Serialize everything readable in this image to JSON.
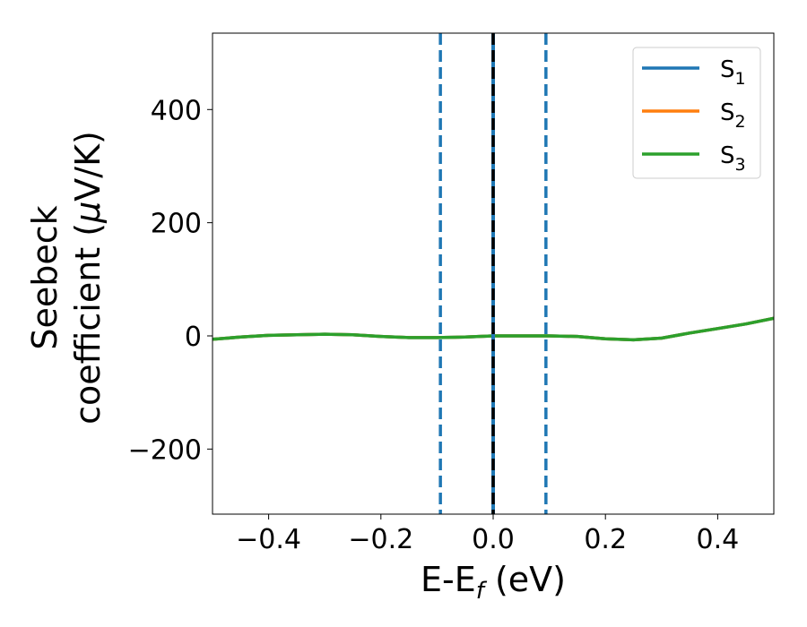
{
  "chart_data": {
    "type": "line",
    "xlabel": {
      "main": "E-E",
      "sub": "f",
      "unit": " (eV)"
    },
    "ylabel": {
      "line1": "Seebeck",
      "line2": "coefficient  (",
      "mu": "μ",
      "unit": "V/K)"
    },
    "xlim": [
      -0.5,
      0.5
    ],
    "ylim": [
      -315,
      535
    ],
    "x_ticks": [
      -0.4,
      -0.2,
      0.0,
      0.2,
      0.4
    ],
    "x_tick_labels": [
      "−0.4",
      "−0.2",
      "0.0",
      "0.2",
      "0.4"
    ],
    "y_ticks": [
      -200,
      0,
      200,
      400
    ],
    "y_tick_labels": [
      "−200",
      "0",
      "200",
      "400"
    ],
    "grid": false,
    "legend_position": "top-right",
    "series": [
      {
        "name": "S",
        "sub": "1",
        "color": "#1f77b4",
        "x": [
          -0.5,
          -0.45,
          -0.4,
          -0.35,
          -0.3,
          -0.25,
          -0.2,
          -0.15,
          -0.1,
          -0.05,
          0.0,
          0.05,
          0.1,
          0.15,
          0.2,
          0.25,
          0.3,
          0.35,
          0.4,
          0.45,
          0.5
        ],
        "y": [
          -6,
          -2,
          1,
          2,
          3,
          2,
          -1,
          -3,
          -3,
          -2,
          0,
          0,
          0,
          -1,
          -5,
          -7,
          -4,
          5,
          13,
          21,
          31
        ]
      },
      {
        "name": "S",
        "sub": "2",
        "color": "#ff7f0e",
        "x": [
          -0.5,
          -0.45,
          -0.4,
          -0.35,
          -0.3,
          -0.25,
          -0.2,
          -0.15,
          -0.1,
          -0.05,
          0.0,
          0.05,
          0.1,
          0.15,
          0.2,
          0.25,
          0.3,
          0.35,
          0.4,
          0.45,
          0.5
        ],
        "y": [
          -6,
          -2,
          1,
          2,
          3,
          2,
          -1,
          -3,
          -3,
          -2,
          0,
          0,
          0,
          -1,
          -5,
          -7,
          -4,
          5,
          13,
          21,
          31
        ]
      },
      {
        "name": "S",
        "sub": "3",
        "color": "#2ca02c",
        "x": [
          -0.5,
          -0.45,
          -0.4,
          -0.35,
          -0.3,
          -0.25,
          -0.2,
          -0.15,
          -0.1,
          -0.05,
          0.0,
          0.05,
          0.1,
          0.15,
          0.2,
          0.25,
          0.3,
          0.35,
          0.4,
          0.45,
          0.5
        ],
        "y": [
          -6,
          -2,
          1,
          2,
          3,
          2,
          -1,
          -3,
          -3,
          -2,
          0,
          0,
          0,
          -1,
          -5,
          -7,
          -4,
          5,
          13,
          21,
          31
        ]
      }
    ],
    "vertical_lines": [
      {
        "x": -0.094,
        "color": "#1f77b4",
        "style": "dashed"
      },
      {
        "x": 0.0,
        "color": "#1f77b4",
        "style": "solid"
      },
      {
        "x": 0.0,
        "color": "#000000",
        "style": "dashed"
      },
      {
        "x": 0.094,
        "color": "#1f77b4",
        "style": "dashed"
      }
    ]
  }
}
